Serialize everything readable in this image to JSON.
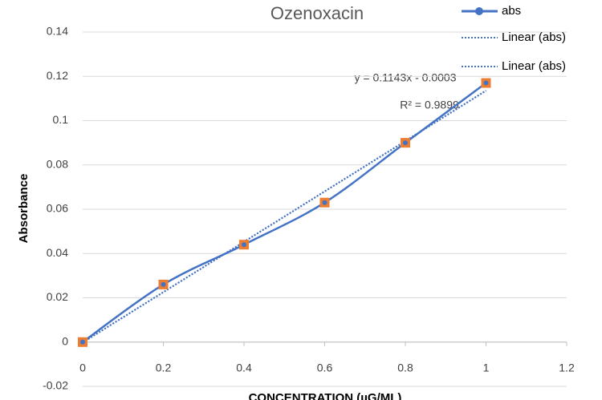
{
  "chart_data": {
    "type": "line",
    "title": "Ozenoxacin",
    "x_label": "CONCENTRATION (µG/ML)",
    "y_label": "Absorbance",
    "x": [
      0,
      0.2,
      0.4,
      0.6,
      0.8,
      1
    ],
    "series": [
      {
        "name": "abs",
        "color": "#4472c4",
        "marker_color": "#ed7d31",
        "values": [
          0,
          0.026,
          0.044,
          0.063,
          0.09,
          0.117
        ]
      }
    ],
    "trendlines": [
      {
        "name": "Linear (abs)",
        "color": "#4472c4"
      },
      {
        "name": "Linear (abs)",
        "color": "#4472c4"
      }
    ],
    "annotations": [
      "y = 0.1143x  - 0.0003",
      "R² = 0.9899"
    ],
    "xlim": [
      0,
      1.2
    ],
    "xticks": [
      0,
      0.2,
      0.4,
      0.6,
      0.8,
      1,
      1.2
    ],
    "ylim": [
      -0.02,
      0.14
    ],
    "yticks": [
      -0.02,
      0,
      0.02,
      0.04,
      0.06,
      0.08,
      0.1,
      0.12,
      0.14
    ],
    "grid": true,
    "legend": "top-right"
  }
}
